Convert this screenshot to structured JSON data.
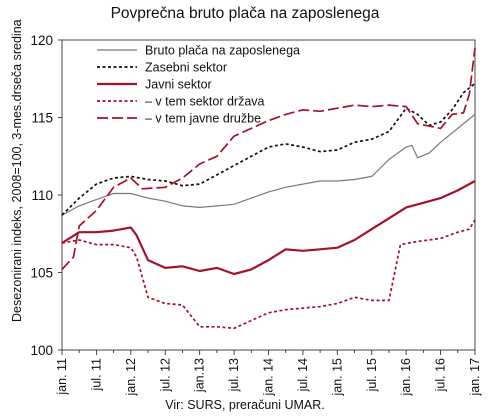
{
  "chart_data": {
    "type": "line",
    "title": "Povprečna bruto plača na zaposlenega",
    "ylabel": "Desezonirani indeks, 2008=100, 3-mes.drseča sredina",
    "xlabel": "",
    "source": "Vir: SURS, preračuni UMAR.",
    "ylim": [
      100,
      120
    ],
    "yticks": [
      100,
      105,
      110,
      115,
      120
    ],
    "xlim": [
      0,
      72
    ],
    "xticks": [
      {
        "pos": 0,
        "label": "jan. 11"
      },
      {
        "pos": 6,
        "label": "jul. 11"
      },
      {
        "pos": 12,
        "label": "jan. 12"
      },
      {
        "pos": 18,
        "label": "jul. 12"
      },
      {
        "pos": 24,
        "label": "jan.13"
      },
      {
        "pos": 30,
        "label": "jul. 13"
      },
      {
        "pos": 36,
        "label": "jan. 14"
      },
      {
        "pos": 42,
        "label": "jul. 14"
      },
      {
        "pos": 48,
        "label": "jan. 15"
      },
      {
        "pos": 54,
        "label": "jul. 15"
      },
      {
        "pos": 60,
        "label": "jan. 16"
      },
      {
        "pos": 66,
        "label": "jul. 16"
      },
      {
        "pos": 72,
        "label": "jan. 17"
      }
    ],
    "grid": false,
    "legend_position": "top-left",
    "series": [
      {
        "name": "Bruto plača na zaposlenega",
        "color": "#7a7a7a",
        "dash": "solid",
        "points": [
          [
            0,
            108.7
          ],
          [
            3,
            109.3
          ],
          [
            6,
            109.7
          ],
          [
            9,
            110.1
          ],
          [
            12,
            110.1
          ],
          [
            15,
            109.8
          ],
          [
            18,
            109.6
          ],
          [
            21,
            109.3
          ],
          [
            24,
            109.2
          ],
          [
            27,
            109.3
          ],
          [
            30,
            109.4
          ],
          [
            33,
            109.8
          ],
          [
            36,
            110.2
          ],
          [
            39,
            110.5
          ],
          [
            42,
            110.7
          ],
          [
            45,
            110.9
          ],
          [
            48,
            110.9
          ],
          [
            51,
            111.0
          ],
          [
            54,
            111.2
          ],
          [
            57,
            112.3
          ],
          [
            60,
            113.1
          ],
          [
            61,
            113.2
          ],
          [
            62,
            112.4
          ],
          [
            64,
            112.7
          ],
          [
            66,
            113.4
          ],
          [
            69,
            114.3
          ],
          [
            72,
            115.2
          ]
        ]
      },
      {
        "name": "Zasebni sektor",
        "color": "#111111",
        "dash": "short",
        "points": [
          [
            0,
            108.7
          ],
          [
            3,
            109.8
          ],
          [
            6,
            110.7
          ],
          [
            9,
            111.1
          ],
          [
            12,
            111.2
          ],
          [
            15,
            111.0
          ],
          [
            18,
            110.9
          ],
          [
            21,
            110.6
          ],
          [
            24,
            110.7
          ],
          [
            27,
            111.3
          ],
          [
            30,
            111.9
          ],
          [
            33,
            112.5
          ],
          [
            36,
            113.1
          ],
          [
            39,
            113.3
          ],
          [
            42,
            113.1
          ],
          [
            45,
            112.8
          ],
          [
            48,
            112.9
          ],
          [
            51,
            113.4
          ],
          [
            54,
            113.6
          ],
          [
            57,
            114.1
          ],
          [
            60,
            115.6
          ],
          [
            62,
            115.2
          ],
          [
            64,
            114.5
          ],
          [
            66,
            114.7
          ],
          [
            68,
            115.5
          ],
          [
            70,
            116.6
          ],
          [
            72,
            117.2
          ]
        ]
      },
      {
        "name": "Javni sektor",
        "color": "#a3122a",
        "dash": "solid",
        "points": [
          [
            0,
            106.9
          ],
          [
            3,
            107.6
          ],
          [
            6,
            107.6
          ],
          [
            9,
            107.7
          ],
          [
            12,
            107.9
          ],
          [
            13,
            107.4
          ],
          [
            15,
            105.8
          ],
          [
            18,
            105.3
          ],
          [
            21,
            105.4
          ],
          [
            24,
            105.1
          ],
          [
            27,
            105.3
          ],
          [
            30,
            104.9
          ],
          [
            33,
            105.2
          ],
          [
            36,
            105.8
          ],
          [
            39,
            106.5
          ],
          [
            42,
            106.4
          ],
          [
            45,
            106.5
          ],
          [
            48,
            106.6
          ],
          [
            51,
            107.1
          ],
          [
            54,
            107.8
          ],
          [
            57,
            108.5
          ],
          [
            60,
            109.2
          ],
          [
            63,
            109.5
          ],
          [
            66,
            109.8
          ],
          [
            69,
            110.3
          ],
          [
            72,
            110.9
          ]
        ]
      },
      {
        "name": "– v tem sektor država",
        "color": "#a3122a",
        "dash": "short",
        "points": [
          [
            0,
            106.9
          ],
          [
            3,
            107.1
          ],
          [
            6,
            106.8
          ],
          [
            9,
            106.8
          ],
          [
            12,
            106.6
          ],
          [
            13,
            106.0
          ],
          [
            15,
            103.4
          ],
          [
            18,
            103.0
          ],
          [
            21,
            102.9
          ],
          [
            24,
            101.5
          ],
          [
            27,
            101.5
          ],
          [
            30,
            101.4
          ],
          [
            33,
            101.9
          ],
          [
            36,
            102.4
          ],
          [
            39,
            102.6
          ],
          [
            42,
            102.7
          ],
          [
            45,
            102.8
          ],
          [
            48,
            103.0
          ],
          [
            51,
            103.4
          ],
          [
            54,
            103.2
          ],
          [
            57,
            103.2
          ],
          [
            59,
            106.8
          ],
          [
            62,
            107.0
          ],
          [
            66,
            107.2
          ],
          [
            69,
            107.6
          ],
          [
            71,
            107.8
          ],
          [
            72,
            108.4
          ]
        ]
      },
      {
        "name": "– v tem javne družbe",
        "color": "#a3122a",
        "dash": "long",
        "points": [
          [
            0,
            105.2
          ],
          [
            2,
            106.0
          ],
          [
            3,
            108.0
          ],
          [
            6,
            109.0
          ],
          [
            9,
            110.5
          ],
          [
            12,
            111.1
          ],
          [
            14,
            110.4
          ],
          [
            18,
            110.5
          ],
          [
            21,
            111.1
          ],
          [
            24,
            112.0
          ],
          [
            27,
            112.5
          ],
          [
            30,
            113.8
          ],
          [
            33,
            114.3
          ],
          [
            36,
            114.8
          ],
          [
            39,
            115.2
          ],
          [
            42,
            115.5
          ],
          [
            45,
            115.4
          ],
          [
            48,
            115.6
          ],
          [
            51,
            115.8
          ],
          [
            54,
            115.7
          ],
          [
            57,
            115.8
          ],
          [
            60,
            115.7
          ],
          [
            62,
            114.6
          ],
          [
            66,
            114.3
          ],
          [
            68,
            115.2
          ],
          [
            70,
            115.3
          ],
          [
            71,
            116.5
          ],
          [
            72,
            119.5
          ]
        ]
      }
    ]
  }
}
